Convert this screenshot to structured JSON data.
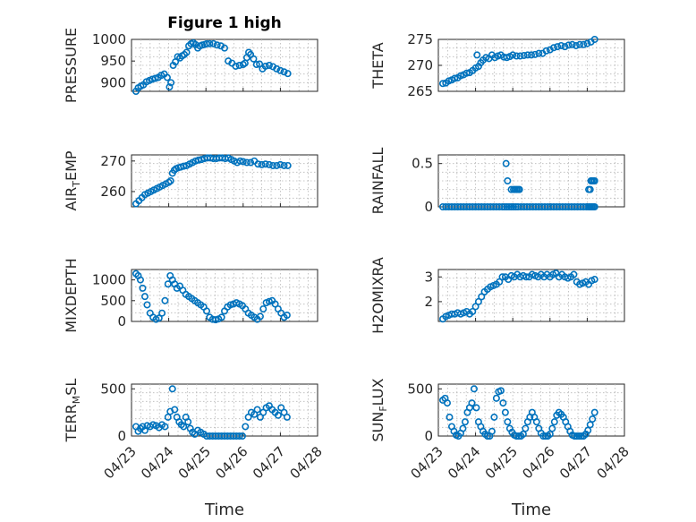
{
  "figure": {
    "title": "Figure 1 high",
    "xlabel": "Time"
  },
  "style": {
    "marker_color": "#0072BD",
    "axis_color": "#262626",
    "grid_color": "#b8b8b8"
  },
  "chart_data": [
    {
      "type": "scatter",
      "ylabel": "PRESSURE",
      "xlim": [
        0,
        5
      ],
      "ylim": [
        880,
        1000
      ],
      "yticks": [
        900,
        950,
        1000
      ],
      "xtick_labels": [
        "04/23",
        "04/24",
        "04/25",
        "04/26",
        "04/27",
        "04/28"
      ],
      "show_xtick_labels": false,
      "x": [
        0.12,
        0.18,
        0.25,
        0.32,
        0.4,
        0.48,
        0.56,
        0.64,
        0.72,
        0.8,
        0.88,
        0.96,
        1.02,
        1.06,
        1.12,
        1.18,
        1.24,
        1.3,
        1.36,
        1.42,
        1.48,
        1.54,
        1.6,
        1.66,
        1.72,
        1.78,
        1.84,
        1.9,
        1.96,
        2.02,
        2.1,
        2.2,
        2.3,
        2.4,
        2.5,
        2.6,
        2.7,
        2.8,
        2.9,
        3.0,
        3.05,
        3.1,
        3.15,
        3.2,
        3.28,
        3.36,
        3.44,
        3.52,
        3.6,
        3.7,
        3.8,
        3.9,
        4.0,
        4.1,
        4.2
      ],
      "y": [
        880,
        888,
        892,
        895,
        902,
        905,
        908,
        910,
        912,
        917,
        920,
        912,
        890,
        900,
        940,
        948,
        960,
        957,
        962,
        965,
        970,
        985,
        990,
        992,
        988,
        980,
        985,
        987,
        988,
        990,
        990,
        990,
        987,
        985,
        980,
        950,
        945,
        938,
        940,
        942,
        945,
        958,
        970,
        965,
        955,
        942,
        943,
        932,
        938,
        940,
        937,
        932,
        928,
        925,
        921
      ]
    },
    {
      "type": "scatter",
      "ylabel": "THETA",
      "xlim": [
        0,
        5
      ],
      "ylim": [
        265,
        275
      ],
      "yticks": [
        265,
        270,
        275
      ],
      "xtick_labels": [
        "04/23",
        "04/24",
        "04/25",
        "04/26",
        "04/27",
        "04/28"
      ],
      "show_xtick_labels": false,
      "x": [
        0.12,
        0.2,
        0.28,
        0.36,
        0.44,
        0.52,
        0.6,
        0.68,
        0.76,
        0.84,
        0.92,
        1.0,
        1.04,
        1.08,
        1.14,
        1.2,
        1.28,
        1.36,
        1.44,
        1.52,
        1.6,
        1.68,
        1.76,
        1.84,
        1.92,
        2.0,
        2.1,
        2.2,
        2.3,
        2.4,
        2.5,
        2.6,
        2.7,
        2.8,
        2.9,
        3.0,
        3.1,
        3.2,
        3.3,
        3.4,
        3.5,
        3.6,
        3.7,
        3.8,
        3.9,
        4.0,
        4.1,
        4.2
      ],
      "y": [
        266.5,
        266.6,
        267,
        267.2,
        267.5,
        267.6,
        268,
        268.2,
        268.5,
        268.6,
        269,
        269.5,
        272,
        269.8,
        270.5,
        271,
        271.5,
        271.3,
        272,
        271.5,
        271.8,
        272,
        271.6,
        271.5,
        271.7,
        272,
        271.8,
        271.8,
        271.9,
        272,
        272,
        272.1,
        272.3,
        272.3,
        272.8,
        273,
        273.4,
        273.6,
        273.8,
        273.6,
        273.9,
        274,
        273.8,
        274,
        274,
        274.2,
        274.5,
        275
      ]
    },
    {
      "type": "scatter",
      "ylabel": "AIR_TEMP",
      "xlim": [
        0,
        5
      ],
      "ylim": [
        255,
        272
      ],
      "yticks": [
        260,
        270
      ],
      "xtick_labels": [
        "04/23",
        "04/24",
        "04/25",
        "04/26",
        "04/27",
        "04/28"
      ],
      "show_xtick_labels": false,
      "x": [
        0.12,
        0.2,
        0.28,
        0.36,
        0.44,
        0.52,
        0.6,
        0.68,
        0.76,
        0.84,
        0.92,
        1.0,
        1.05,
        1.1,
        1.15,
        1.2,
        1.26,
        1.32,
        1.4,
        1.48,
        1.56,
        1.64,
        1.72,
        1.8,
        1.88,
        1.96,
        2.04,
        2.12,
        2.2,
        2.28,
        2.36,
        2.44,
        2.52,
        2.6,
        2.68,
        2.76,
        2.84,
        2.92,
        3.0,
        3.1,
        3.2,
        3.3,
        3.4,
        3.5,
        3.6,
        3.7,
        3.8,
        3.9,
        4.0,
        4.1,
        4.2
      ],
      "y": [
        256,
        257,
        258,
        259,
        259.5,
        260,
        260.5,
        261,
        261.5,
        262,
        262.5,
        263,
        263.5,
        266,
        267,
        267.5,
        267.8,
        268,
        268.3,
        268.5,
        269,
        269.5,
        270,
        270.3,
        270.5,
        270.8,
        271,
        271,
        270.8,
        270.8,
        271,
        271,
        270.8,
        271,
        270.5,
        270,
        269.5,
        270,
        269.8,
        269.5,
        269.5,
        270,
        269,
        268.8,
        269,
        268.8,
        268.5,
        268.5,
        268.8,
        268.5,
        268.5
      ]
    },
    {
      "type": "scatter",
      "ylabel": "RAINFALL",
      "xlim": [
        0,
        5
      ],
      "ylim": [
        0,
        0.6
      ],
      "yticks": [
        0,
        0.5
      ],
      "xtick_labels": [
        "04/23",
        "04/24",
        "04/25",
        "04/26",
        "04/27",
        "04/28"
      ],
      "show_xtick_labels": false,
      "x": [
        0.12,
        0.2,
        0.28,
        0.36,
        0.44,
        0.52,
        0.6,
        0.68,
        0.76,
        0.84,
        0.92,
        1.0,
        1.08,
        1.16,
        1.24,
        1.32,
        1.4,
        1.48,
        1.56,
        1.64,
        1.72,
        1.78,
        1.84,
        1.9,
        1.96,
        2.02,
        2.08,
        2.14,
        2.22,
        2.3,
        2.38,
        2.46,
        2.54,
        2.62,
        2.7,
        2.78,
        2.86,
        2.94,
        3.02,
        3.1,
        3.18,
        3.26,
        3.34,
        3.42,
        3.5,
        3.58,
        3.66,
        3.74,
        3.82,
        3.9,
        3.98,
        4.04,
        4.08,
        4.12,
        4.16,
        4.2,
        1.82,
        1.86,
        1.96,
        2.02,
        2.06,
        2.1,
        2.14,
        2.18,
        4.04,
        4.08,
        4.1,
        4.12,
        4.16,
        4.2
      ],
      "y": [
        0,
        0,
        0,
        0,
        0,
        0,
        0,
        0,
        0,
        0,
        0,
        0,
        0,
        0,
        0,
        0,
        0,
        0,
        0,
        0,
        0,
        0,
        0,
        0,
        0,
        0,
        0,
        0,
        0,
        0,
        0,
        0,
        0,
        0,
        0,
        0,
        0,
        0,
        0,
        0,
        0,
        0,
        0,
        0,
        0,
        0,
        0,
        0,
        0,
        0,
        0,
        0,
        0,
        0,
        0,
        0,
        0.5,
        0.3,
        0.2,
        0.2,
        0.2,
        0.2,
        0.2,
        0.2,
        0.2,
        0.2,
        0.3,
        0.3,
        0.3,
        0.3
      ]
    },
    {
      "type": "scatter",
      "ylabel": "MIXDEPTH",
      "xlim": [
        0,
        5
      ],
      "ylim": [
        0,
        1250
      ],
      "yticks": [
        0,
        500,
        1000
      ],
      "xtick_labels": [
        "04/23",
        "04/24",
        "04/25",
        "04/26",
        "04/27",
        "04/28"
      ],
      "show_xtick_labels": false,
      "x": [
        0.12,
        0.18,
        0.24,
        0.3,
        0.36,
        0.42,
        0.5,
        0.58,
        0.66,
        0.74,
        0.82,
        0.9,
        0.98,
        1.04,
        1.1,
        1.16,
        1.22,
        1.3,
        1.38,
        1.46,
        1.54,
        1.62,
        1.7,
        1.78,
        1.86,
        1.94,
        2.02,
        2.1,
        2.18,
        2.26,
        2.34,
        2.42,
        2.5,
        2.58,
        2.66,
        2.74,
        2.82,
        2.9,
        2.98,
        3.06,
        3.14,
        3.22,
        3.3,
        3.38,
        3.46,
        3.54,
        3.62,
        3.7,
        3.78,
        3.86,
        3.94,
        4.02,
        4.1,
        4.18
      ],
      "y": [
        1150,
        1100,
        1000,
        800,
        600,
        400,
        200,
        100,
        50,
        80,
        200,
        500,
        900,
        1100,
        1000,
        900,
        800,
        850,
        750,
        650,
        600,
        550,
        500,
        450,
        400,
        350,
        250,
        100,
        50,
        40,
        60,
        100,
        250,
        350,
        400,
        420,
        450,
        420,
        380,
        300,
        200,
        150,
        100,
        50,
        120,
        300,
        450,
        480,
        500,
        420,
        300,
        200,
        100,
        150
      ]
    },
    {
      "type": "scatter",
      "ylabel": "H2OMIXRA",
      "xlim": [
        0,
        5
      ],
      "ylim": [
        1.2,
        3.3
      ],
      "yticks": [
        2,
        3
      ],
      "xtick_labels": [
        "04/23",
        "04/24",
        "04/25",
        "04/26",
        "04/27",
        "04/28"
      ],
      "show_xtick_labels": false,
      "x": [
        0.12,
        0.2,
        0.28,
        0.36,
        0.44,
        0.52,
        0.6,
        0.68,
        0.76,
        0.84,
        0.92,
        1.0,
        1.08,
        1.16,
        1.24,
        1.32,
        1.4,
        1.48,
        1.56,
        1.64,
        1.72,
        1.8,
        1.88,
        1.96,
        2.04,
        2.12,
        2.2,
        2.28,
        2.36,
        2.44,
        2.52,
        2.6,
        2.68,
        2.76,
        2.84,
        2.92,
        3.0,
        3.08,
        3.16,
        3.24,
        3.32,
        3.4,
        3.48,
        3.56,
        3.64,
        3.72,
        3.8,
        3.88,
        3.96,
        4.04,
        4.12,
        4.2
      ],
      "y": [
        1.3,
        1.4,
        1.45,
        1.5,
        1.5,
        1.55,
        1.5,
        1.55,
        1.6,
        1.5,
        1.6,
        1.8,
        2.0,
        2.2,
        2.4,
        2.5,
        2.6,
        2.65,
        2.7,
        2.8,
        3.0,
        3.0,
        2.9,
        3.05,
        3.0,
        3.1,
        3.0,
        3.05,
        3.0,
        3.0,
        3.1,
        3.05,
        3.0,
        3.1,
        3.0,
        3.1,
        3.0,
        3.1,
        3.15,
        3.0,
        3.1,
        3.0,
        2.95,
        3.0,
        3.1,
        2.8,
        2.7,
        2.75,
        2.8,
        2.7,
        2.85,
        2.9
      ]
    },
    {
      "type": "scatter",
      "ylabel": "TERR_MSL",
      "xlim": [
        0,
        5
      ],
      "ylim": [
        0,
        550
      ],
      "yticks": [
        0,
        500
      ],
      "xtick_labels": [
        "04/23",
        "04/24",
        "04/25",
        "04/26",
        "04/27",
        "04/28"
      ],
      "show_xtick_labels": true,
      "x": [
        0.12,
        0.18,
        0.24,
        0.3,
        0.36,
        0.42,
        0.5,
        0.58,
        0.66,
        0.74,
        0.82,
        0.9,
        0.98,
        1.04,
        1.1,
        1.16,
        1.22,
        1.28,
        1.34,
        1.4,
        1.46,
        1.52,
        1.58,
        1.64,
        1.7,
        1.78,
        1.86,
        1.94,
        2.02,
        2.1,
        2.18,
        2.26,
        2.34,
        2.42,
        2.5,
        2.58,
        2.66,
        2.74,
        2.82,
        2.9,
        2.98,
        3.06,
        3.14,
        3.22,
        3.3,
        3.38,
        3.46,
        3.54,
        3.62,
        3.7,
        3.78,
        3.86,
        3.94,
        4.02,
        4.1,
        4.18
      ],
      "y": [
        100,
        50,
        80,
        100,
        60,
        110,
        100,
        120,
        110,
        90,
        120,
        100,
        200,
        260,
        500,
        280,
        200,
        150,
        120,
        100,
        200,
        150,
        80,
        40,
        20,
        60,
        40,
        20,
        0,
        0,
        0,
        0,
        0,
        0,
        0,
        0,
        0,
        0,
        0,
        0,
        0,
        100,
        200,
        250,
        230,
        280,
        200,
        250,
        300,
        320,
        280,
        250,
        220,
        300,
        250,
        200
      ]
    },
    {
      "type": "scatter",
      "ylabel": "SUN_FLUX",
      "xlim": [
        0,
        5
      ],
      "ylim": [
        0,
        550
      ],
      "yticks": [
        0,
        500
      ],
      "xtick_labels": [
        "04/23",
        "04/24",
        "04/25",
        "04/26",
        "04/27",
        "04/28"
      ],
      "show_xtick_labels": true,
      "x": [
        0.12,
        0.18,
        0.24,
        0.3,
        0.36,
        0.42,
        0.48,
        0.54,
        0.6,
        0.66,
        0.72,
        0.78,
        0.84,
        0.9,
        0.96,
        1.02,
        1.08,
        1.14,
        1.2,
        1.26,
        1.32,
        1.38,
        1.44,
        1.5,
        1.56,
        1.62,
        1.68,
        1.74,
        1.8,
        1.86,
        1.92,
        1.98,
        2.04,
        2.1,
        2.16,
        2.22,
        2.28,
        2.34,
        2.4,
        2.46,
        2.52,
        2.58,
        2.64,
        2.7,
        2.76,
        2.82,
        2.88,
        2.94,
        3.0,
        3.06,
        3.12,
        3.18,
        3.24,
        3.3,
        3.36,
        3.42,
        3.48,
        3.54,
        3.6,
        3.66,
        3.72,
        3.78,
        3.84,
        3.9,
        3.96,
        4.02,
        4.08,
        4.14,
        4.2
      ],
      "y": [
        380,
        400,
        350,
        200,
        100,
        50,
        10,
        0,
        30,
        80,
        150,
        250,
        300,
        350,
        500,
        300,
        150,
        100,
        50,
        20,
        0,
        0,
        50,
        200,
        400,
        470,
        480,
        350,
        250,
        150,
        80,
        40,
        10,
        0,
        0,
        0,
        20,
        80,
        150,
        200,
        250,
        200,
        150,
        80,
        30,
        0,
        0,
        0,
        20,
        80,
        150,
        220,
        250,
        230,
        200,
        150,
        100,
        50,
        10,
        0,
        0,
        0,
        0,
        0,
        20,
        60,
        120,
        180,
        250
      ]
    }
  ]
}
